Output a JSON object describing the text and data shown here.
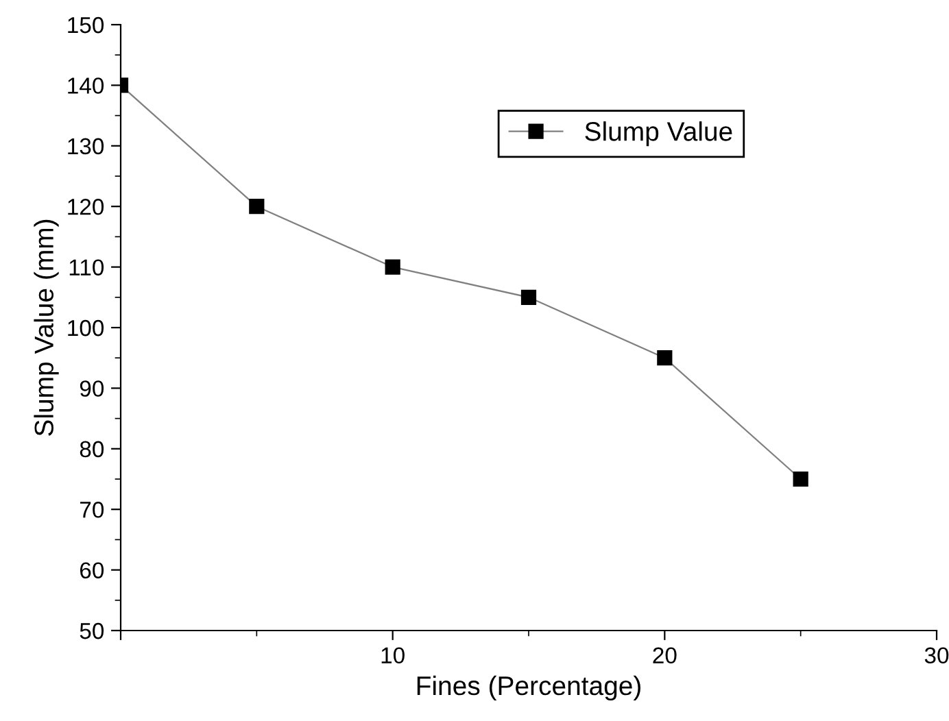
{
  "chart_data": {
    "type": "line",
    "xlabel": "Fines (Percentage)",
    "ylabel": "Slump Value (mm)",
    "x": [
      0,
      5,
      10,
      15,
      20,
      25
    ],
    "series": [
      {
        "name": "Slump Value",
        "color": "#000000",
        "values": [
          140,
          120,
          110,
          105,
          95,
          75
        ]
      }
    ],
    "xlim": [
      0,
      30
    ],
    "xticks": [
      {
        "value": 0,
        "label": null
      },
      10,
      20,
      30
    ],
    "ylim": [
      50,
      150
    ],
    "yticks": [
      50,
      60,
      70,
      80,
      90,
      100,
      110,
      120,
      130,
      140,
      150
    ],
    "marker": "square",
    "line_style": "solid",
    "grid": false,
    "legend": "top right"
  }
}
